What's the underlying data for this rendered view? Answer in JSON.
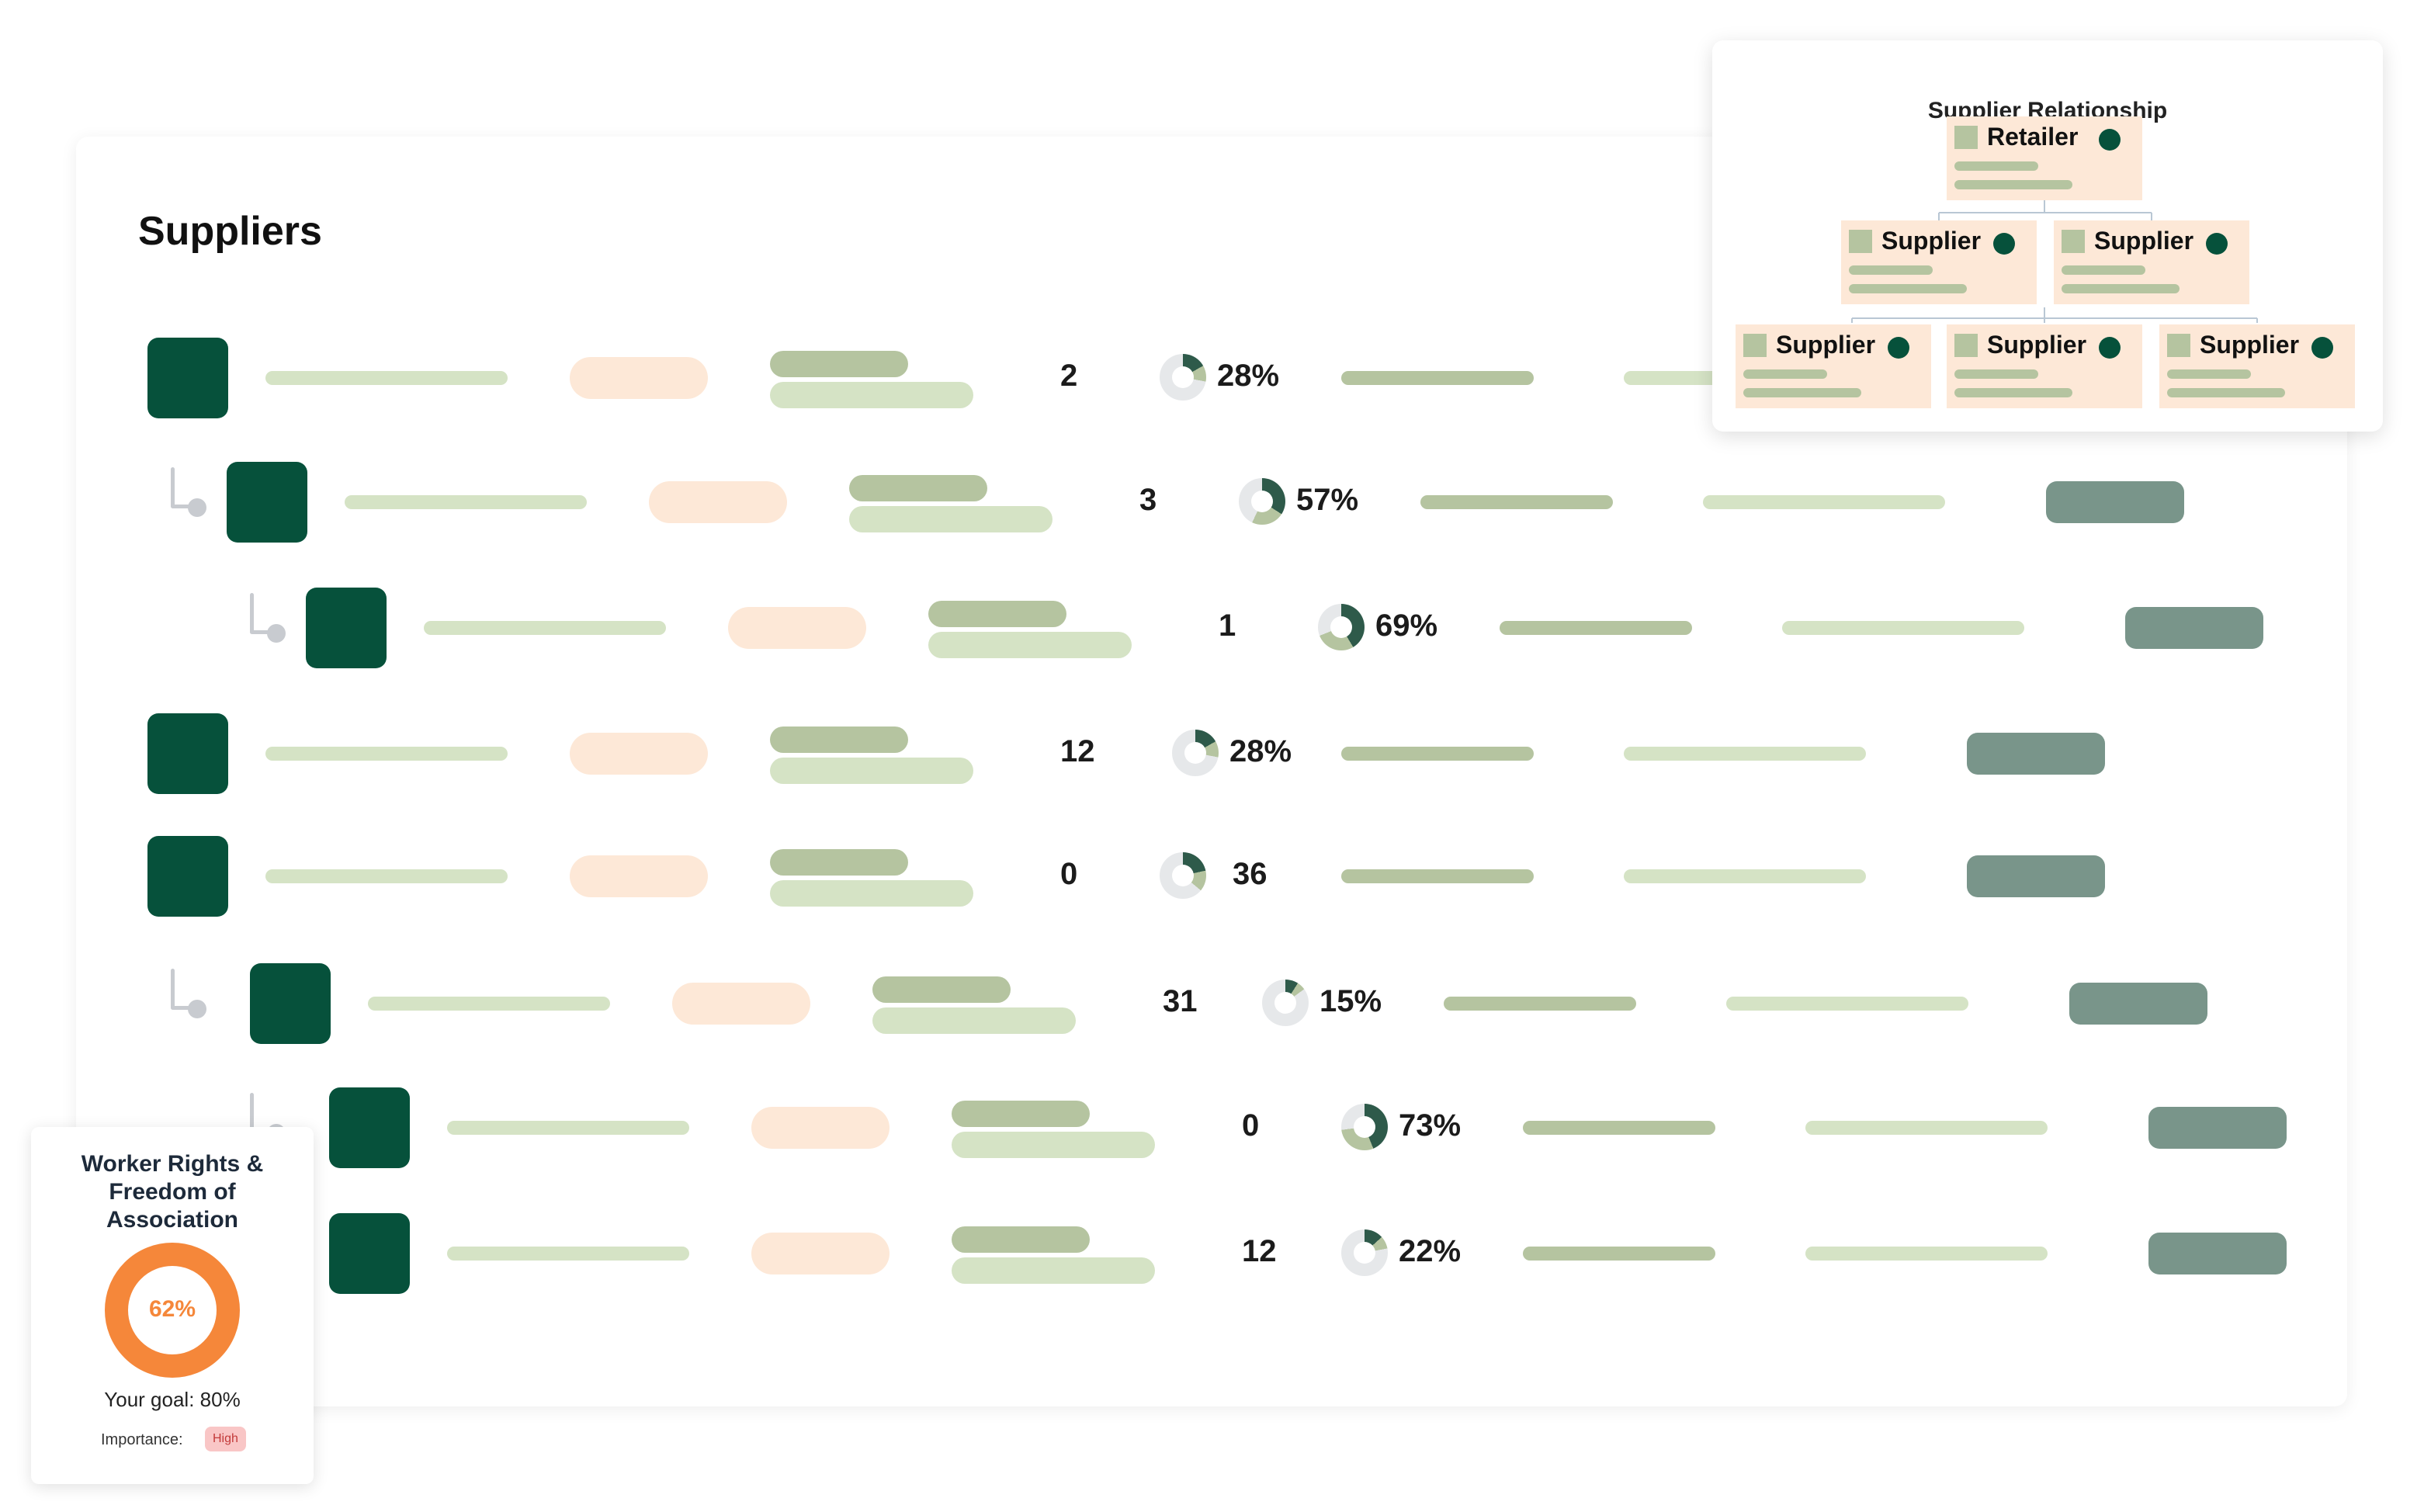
{
  "page": {
    "title": "Suppliers"
  },
  "rows": [
    {
      "indent": 0,
      "connector": false,
      "count": "2",
      "percent_label": "28%",
      "percent": 28
    },
    {
      "indent": 1,
      "connector": true,
      "count": "3",
      "percent_label": "57%",
      "percent": 57
    },
    {
      "indent": 2,
      "connector": true,
      "count": "1",
      "percent_label": "69%",
      "percent": 69
    },
    {
      "indent": 0,
      "connector": false,
      "count": "12",
      "percent_label": "28%",
      "percent": 28
    },
    {
      "indent": 0,
      "connector": false,
      "count": "0",
      "percent_label": "36",
      "percent": 36
    },
    {
      "indent": 1,
      "connector": true,
      "count": "31",
      "percent_label": "15%",
      "percent": 15
    },
    {
      "indent": 2,
      "connector": true,
      "count": "0",
      "percent_label": "73%",
      "percent": 73
    },
    {
      "indent": 2,
      "connector": false,
      "count": "12",
      "percent_label": "22%",
      "percent": 22
    }
  ],
  "relationship": {
    "title": "Supplier Relationship",
    "root": "Retailer",
    "level2": [
      "Supplier",
      "Supplier"
    ],
    "level3": [
      "Supplier",
      "Supplier",
      "Supplier"
    ]
  },
  "worker_card": {
    "title_line1": "Worker Rights &",
    "title_line2": "Freedom of",
    "title_line3": "Association",
    "progress_label": "62%",
    "progress": 62,
    "goal": "Your goal: 80%",
    "importance_label": "Importance:",
    "importance_value": "High"
  },
  "colors": {
    "avatar": "#06513b",
    "donut_dark": "#2e5a4a",
    "donut_light": "#e6e8ea",
    "orange": "#f5873a",
    "button": "#79958a",
    "pill": "#fde8d7",
    "bar_light": "#d5e3c5",
    "bar_mid": "#b5c4a0"
  }
}
